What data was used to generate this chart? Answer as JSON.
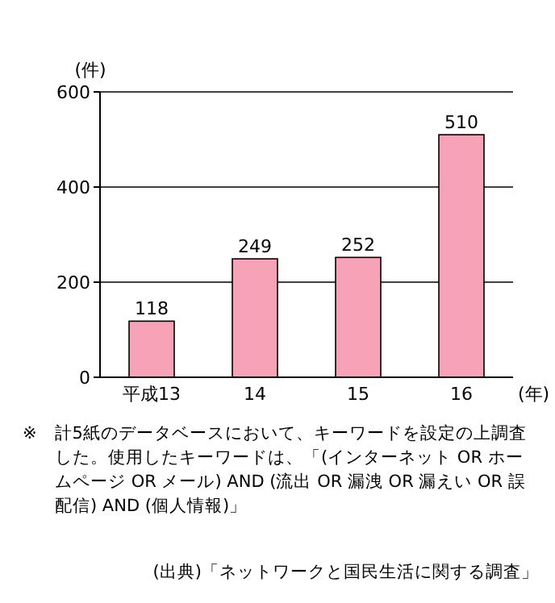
{
  "chart_data": {
    "type": "bar",
    "ylabel": "(件)",
    "xlabel": "(年)",
    "categories": [
      "平成13",
      "14",
      "15",
      "16"
    ],
    "values": [
      118,
      249,
      252,
      510
    ],
    "color": "#f7a3b7",
    "ylim": [
      0,
      600
    ],
    "yticks": [
      0,
      200,
      400,
      600
    ],
    "grid": "y",
    "data_labels": true,
    "annotations": [
      "※　計5紙のデータベースにおいて、キーワードを設定の上調査した。使用したキーワードは、「(インターネット OR ホームページ OR メール) AND (流出 OR 漏洩 OR 漏えい OR 誤配信) AND (個人情報)」",
      "(出典)「ネットワークと国民生活に関する調査」"
    ]
  }
}
